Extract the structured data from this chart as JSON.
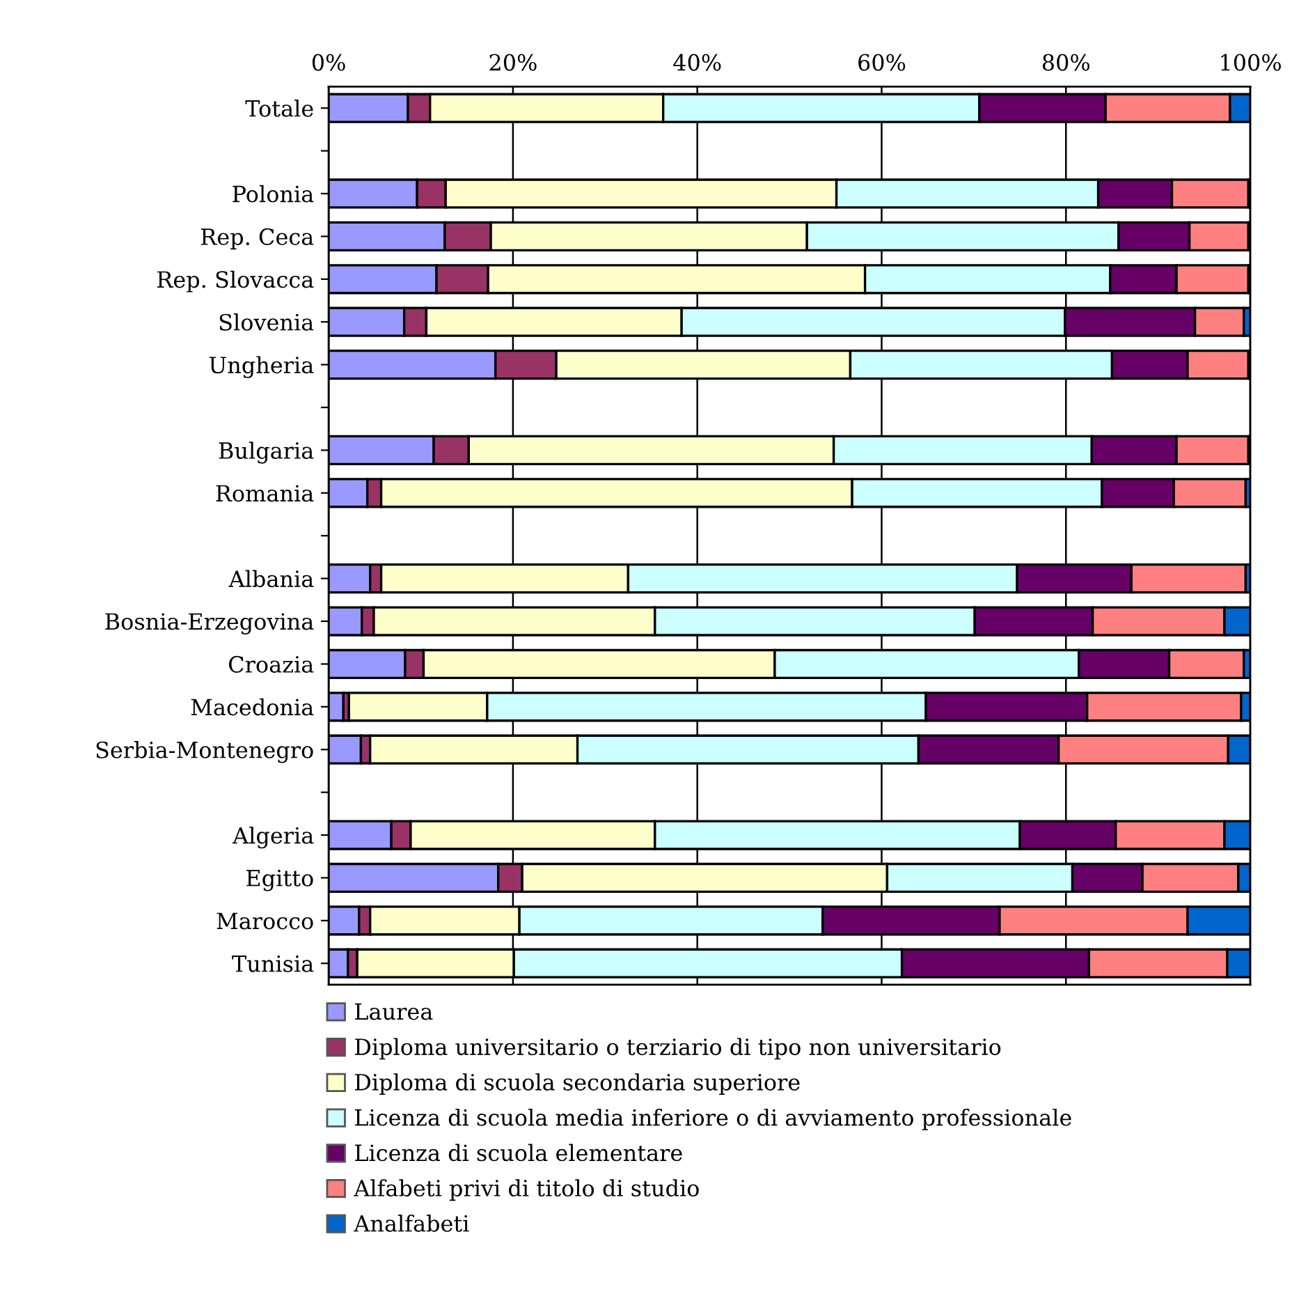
{
  "chart_data": {
    "type": "bar",
    "orientation": "horizontal",
    "stacked": true,
    "categories": [
      "Totale",
      null,
      "Polonia",
      "Rep. Ceca",
      "Rep. Slovacca",
      "Slovenia",
      "Ungheria",
      null,
      "Bulgaria",
      "Romania",
      null,
      "Albania",
      "Bosnia-Erzegovina",
      "Croazia",
      "Macedonia",
      "Serbia-Montenegro",
      null,
      "Algeria",
      "Egitto",
      "Marocco",
      "Tunisia"
    ],
    "series": [
      {
        "name": "Laurea",
        "color": "#9999ff",
        "values": [
          8.6,
          null,
          9.6,
          12.6,
          11.7,
          8.2,
          18.1,
          null,
          11.4,
          4.2,
          null,
          4.5,
          3.6,
          8.3,
          1.6,
          3.5,
          null,
          6.8,
          18.4,
          3.3,
          2.1
        ]
      },
      {
        "name": "Diploma universitario o terziario di tipo non universitario",
        "color": "#993366",
        "values": [
          2.4,
          null,
          3.1,
          5.0,
          5.6,
          2.4,
          6.6,
          null,
          3.8,
          1.5,
          null,
          1.2,
          1.3,
          2.0,
          0.6,
          1.0,
          null,
          2.1,
          2.6,
          1.2,
          1.0
        ]
      },
      {
        "name": "Diploma di scuola secondaria superiore",
        "color": "#ffffcc",
        "values": [
          25.3,
          null,
          42.4,
          34.3,
          40.9,
          27.7,
          31.9,
          null,
          39.6,
          51.1,
          null,
          26.8,
          30.5,
          38.1,
          15.0,
          22.5,
          null,
          26.5,
          39.6,
          16.2,
          17.0
        ]
      },
      {
        "name": "Licenza di scuola media inferiore o di avviamento professionale",
        "color": "#ccffff",
        "values": [
          34.3,
          null,
          28.4,
          33.8,
          26.6,
          41.6,
          28.4,
          null,
          28.0,
          27.1,
          null,
          42.2,
          34.7,
          33.0,
          47.6,
          37.0,
          null,
          39.6,
          20.1,
          32.9,
          42.1
        ]
      },
      {
        "name": "Licenza di scuola elementare",
        "color": "#660066",
        "values": [
          13.7,
          null,
          8.0,
          7.7,
          7.2,
          14.1,
          8.2,
          null,
          9.2,
          7.8,
          null,
          12.4,
          12.8,
          9.8,
          17.5,
          15.2,
          null,
          10.4,
          7.6,
          19.2,
          20.3
        ]
      },
      {
        "name": "Alfabeti privi di titolo di studio",
        "color": "#ff8080",
        "values": [
          13.5,
          null,
          8.3,
          6.4,
          7.8,
          5.3,
          6.6,
          null,
          7.8,
          7.8,
          null,
          12.4,
          14.3,
          8.1,
          16.7,
          18.4,
          null,
          11.8,
          10.4,
          20.4,
          15.0
        ]
      },
      {
        "name": "Analfabeti",
        "color": "#0066cc",
        "values": [
          2.2,
          null,
          0.2,
          0.2,
          0.2,
          0.7,
          0.2,
          null,
          0.2,
          0.5,
          null,
          0.5,
          2.8,
          0.7,
          1.0,
          2.4,
          null,
          2.8,
          1.3,
          6.8,
          2.5
        ]
      }
    ],
    "xlim": [
      0,
      100
    ],
    "xticks": [
      {
        "value": 0,
        "label": "0%"
      },
      {
        "value": 20,
        "label": "20%"
      },
      {
        "value": 40,
        "label": "40%"
      },
      {
        "value": 60,
        "label": "60%"
      },
      {
        "value": 80,
        "label": "80%"
      },
      {
        "value": 100,
        "label": "100%"
      }
    ],
    "grid": "x",
    "legend": "bottom"
  }
}
